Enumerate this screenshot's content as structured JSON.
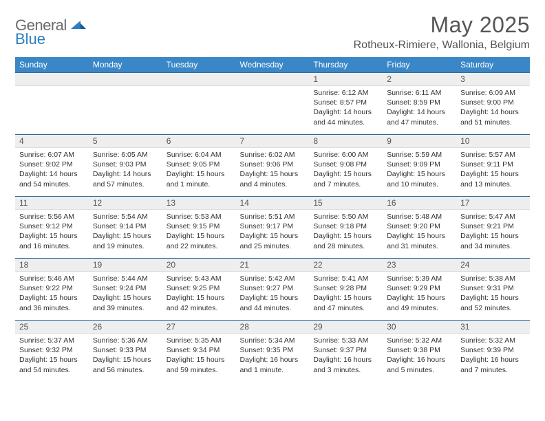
{
  "brand": {
    "text_gray": "General",
    "text_blue": "Blue"
  },
  "title": "May 2025",
  "location": "Rotheux-Rimiere, Wallonia, Belgium",
  "colors": {
    "header_bg": "#3a87c7",
    "week_border": "#2f6ca0",
    "date_bar_bg": "#eeeeee"
  },
  "day_names": [
    "Sunday",
    "Monday",
    "Tuesday",
    "Wednesday",
    "Thursday",
    "Friday",
    "Saturday"
  ],
  "weeks": [
    [
      null,
      null,
      null,
      null,
      {
        "d": "1",
        "sr": "Sunrise: 6:12 AM",
        "ss": "Sunset: 8:57 PM",
        "dl": "Daylight: 14 hours and 44 minutes."
      },
      {
        "d": "2",
        "sr": "Sunrise: 6:11 AM",
        "ss": "Sunset: 8:59 PM",
        "dl": "Daylight: 14 hours and 47 minutes."
      },
      {
        "d": "3",
        "sr": "Sunrise: 6:09 AM",
        "ss": "Sunset: 9:00 PM",
        "dl": "Daylight: 14 hours and 51 minutes."
      }
    ],
    [
      {
        "d": "4",
        "sr": "Sunrise: 6:07 AM",
        "ss": "Sunset: 9:02 PM",
        "dl": "Daylight: 14 hours and 54 minutes."
      },
      {
        "d": "5",
        "sr": "Sunrise: 6:05 AM",
        "ss": "Sunset: 9:03 PM",
        "dl": "Daylight: 14 hours and 57 minutes."
      },
      {
        "d": "6",
        "sr": "Sunrise: 6:04 AM",
        "ss": "Sunset: 9:05 PM",
        "dl": "Daylight: 15 hours and 1 minute."
      },
      {
        "d": "7",
        "sr": "Sunrise: 6:02 AM",
        "ss": "Sunset: 9:06 PM",
        "dl": "Daylight: 15 hours and 4 minutes."
      },
      {
        "d": "8",
        "sr": "Sunrise: 6:00 AM",
        "ss": "Sunset: 9:08 PM",
        "dl": "Daylight: 15 hours and 7 minutes."
      },
      {
        "d": "9",
        "sr": "Sunrise: 5:59 AM",
        "ss": "Sunset: 9:09 PM",
        "dl": "Daylight: 15 hours and 10 minutes."
      },
      {
        "d": "10",
        "sr": "Sunrise: 5:57 AM",
        "ss": "Sunset: 9:11 PM",
        "dl": "Daylight: 15 hours and 13 minutes."
      }
    ],
    [
      {
        "d": "11",
        "sr": "Sunrise: 5:56 AM",
        "ss": "Sunset: 9:12 PM",
        "dl": "Daylight: 15 hours and 16 minutes."
      },
      {
        "d": "12",
        "sr": "Sunrise: 5:54 AM",
        "ss": "Sunset: 9:14 PM",
        "dl": "Daylight: 15 hours and 19 minutes."
      },
      {
        "d": "13",
        "sr": "Sunrise: 5:53 AM",
        "ss": "Sunset: 9:15 PM",
        "dl": "Daylight: 15 hours and 22 minutes."
      },
      {
        "d": "14",
        "sr": "Sunrise: 5:51 AM",
        "ss": "Sunset: 9:17 PM",
        "dl": "Daylight: 15 hours and 25 minutes."
      },
      {
        "d": "15",
        "sr": "Sunrise: 5:50 AM",
        "ss": "Sunset: 9:18 PM",
        "dl": "Daylight: 15 hours and 28 minutes."
      },
      {
        "d": "16",
        "sr": "Sunrise: 5:48 AM",
        "ss": "Sunset: 9:20 PM",
        "dl": "Daylight: 15 hours and 31 minutes."
      },
      {
        "d": "17",
        "sr": "Sunrise: 5:47 AM",
        "ss": "Sunset: 9:21 PM",
        "dl": "Daylight: 15 hours and 34 minutes."
      }
    ],
    [
      {
        "d": "18",
        "sr": "Sunrise: 5:46 AM",
        "ss": "Sunset: 9:22 PM",
        "dl": "Daylight: 15 hours and 36 minutes."
      },
      {
        "d": "19",
        "sr": "Sunrise: 5:44 AM",
        "ss": "Sunset: 9:24 PM",
        "dl": "Daylight: 15 hours and 39 minutes."
      },
      {
        "d": "20",
        "sr": "Sunrise: 5:43 AM",
        "ss": "Sunset: 9:25 PM",
        "dl": "Daylight: 15 hours and 42 minutes."
      },
      {
        "d": "21",
        "sr": "Sunrise: 5:42 AM",
        "ss": "Sunset: 9:27 PM",
        "dl": "Daylight: 15 hours and 44 minutes."
      },
      {
        "d": "22",
        "sr": "Sunrise: 5:41 AM",
        "ss": "Sunset: 9:28 PM",
        "dl": "Daylight: 15 hours and 47 minutes."
      },
      {
        "d": "23",
        "sr": "Sunrise: 5:39 AM",
        "ss": "Sunset: 9:29 PM",
        "dl": "Daylight: 15 hours and 49 minutes."
      },
      {
        "d": "24",
        "sr": "Sunrise: 5:38 AM",
        "ss": "Sunset: 9:31 PM",
        "dl": "Daylight: 15 hours and 52 minutes."
      }
    ],
    [
      {
        "d": "25",
        "sr": "Sunrise: 5:37 AM",
        "ss": "Sunset: 9:32 PM",
        "dl": "Daylight: 15 hours and 54 minutes."
      },
      {
        "d": "26",
        "sr": "Sunrise: 5:36 AM",
        "ss": "Sunset: 9:33 PM",
        "dl": "Daylight: 15 hours and 56 minutes."
      },
      {
        "d": "27",
        "sr": "Sunrise: 5:35 AM",
        "ss": "Sunset: 9:34 PM",
        "dl": "Daylight: 15 hours and 59 minutes."
      },
      {
        "d": "28",
        "sr": "Sunrise: 5:34 AM",
        "ss": "Sunset: 9:35 PM",
        "dl": "Daylight: 16 hours and 1 minute."
      },
      {
        "d": "29",
        "sr": "Sunrise: 5:33 AM",
        "ss": "Sunset: 9:37 PM",
        "dl": "Daylight: 16 hours and 3 minutes."
      },
      {
        "d": "30",
        "sr": "Sunrise: 5:32 AM",
        "ss": "Sunset: 9:38 PM",
        "dl": "Daylight: 16 hours and 5 minutes."
      },
      {
        "d": "31",
        "sr": "Sunrise: 5:32 AM",
        "ss": "Sunset: 9:39 PM",
        "dl": "Daylight: 16 hours and 7 minutes."
      }
    ]
  ]
}
